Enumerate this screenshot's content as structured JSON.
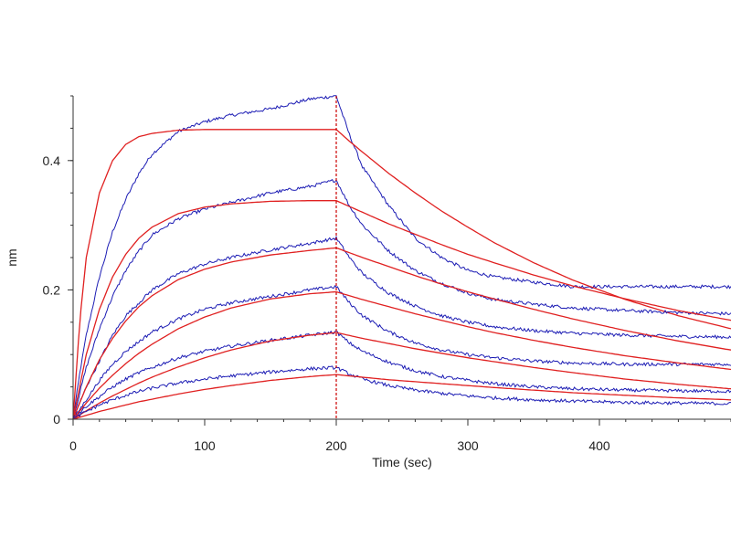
{
  "chart_data": {
    "type": "line",
    "title": "",
    "xlabel": "Time (sec)",
    "ylabel": "nm",
    "xlim": [
      0,
      500
    ],
    "ylim": [
      0,
      0.5
    ],
    "xticks": [
      0,
      100,
      200,
      300,
      400
    ],
    "xtick_labels": [
      "0",
      "100",
      "200",
      "300",
      "400"
    ],
    "yticks": [
      0,
      0.2,
      0.4
    ],
    "ytick_labels": [
      "0",
      "0.2",
      "0.4"
    ],
    "grid": false,
    "legend": "none",
    "vertical_marker": {
      "x": 200,
      "color": "#cc0000",
      "style": "dashed"
    },
    "colors": {
      "measured": "#1c1cb4",
      "fit": "#e02020",
      "axis": "#333333"
    },
    "series": [
      {
        "kind": "measured",
        "x": [
          0,
          5,
          10,
          20,
          30,
          40,
          50,
          60,
          80,
          100,
          120,
          150,
          180,
          200,
          210,
          220,
          240,
          260,
          280,
          300,
          320,
          350,
          380,
          420,
          460,
          500
        ],
        "values": [
          0.0,
          0.07,
          0.13,
          0.22,
          0.29,
          0.34,
          0.38,
          0.41,
          0.445,
          0.46,
          0.47,
          0.48,
          0.495,
          0.5,
          0.44,
          0.39,
          0.33,
          0.28,
          0.25,
          0.23,
          0.22,
          0.212,
          0.205,
          0.205,
          0.205,
          0.205
        ]
      },
      {
        "kind": "fit",
        "x": [
          0,
          5,
          10,
          20,
          30,
          40,
          50,
          60,
          80,
          100,
          120,
          150,
          180,
          200,
          210,
          220,
          240,
          260,
          280,
          300,
          320,
          350,
          380,
          420,
          460,
          500
        ],
        "values": [
          0.0,
          0.15,
          0.25,
          0.35,
          0.4,
          0.425,
          0.437,
          0.442,
          0.447,
          0.448,
          0.448,
          0.448,
          0.448,
          0.448,
          0.43,
          0.413,
          0.38,
          0.35,
          0.322,
          0.297,
          0.273,
          0.242,
          0.215,
          0.185,
          0.16,
          0.14
        ]
      },
      {
        "kind": "measured",
        "x": [
          0,
          10,
          20,
          30,
          40,
          50,
          60,
          80,
          100,
          120,
          150,
          180,
          200,
          210,
          220,
          240,
          260,
          280,
          300,
          320,
          350,
          380,
          420,
          460,
          500
        ],
        "values": [
          0.0,
          0.08,
          0.14,
          0.19,
          0.23,
          0.26,
          0.285,
          0.31,
          0.325,
          0.335,
          0.35,
          0.36,
          0.37,
          0.33,
          0.3,
          0.26,
          0.23,
          0.21,
          0.195,
          0.185,
          0.178,
          0.172,
          0.168,
          0.165,
          0.163
        ]
      },
      {
        "kind": "fit",
        "x": [
          0,
          10,
          20,
          30,
          40,
          50,
          60,
          80,
          100,
          120,
          150,
          180,
          200,
          220,
          240,
          260,
          280,
          300,
          320,
          350,
          380,
          420,
          460,
          500
        ],
        "values": [
          0.0,
          0.1,
          0.17,
          0.22,
          0.255,
          0.28,
          0.297,
          0.318,
          0.328,
          0.333,
          0.337,
          0.338,
          0.338,
          0.32,
          0.302,
          0.286,
          0.27,
          0.255,
          0.242,
          0.223,
          0.206,
          0.186,
          0.168,
          0.153
        ]
      },
      {
        "kind": "measured",
        "x": [
          0,
          10,
          20,
          30,
          40,
          50,
          60,
          80,
          100,
          120,
          150,
          180,
          200,
          210,
          220,
          240,
          260,
          280,
          300,
          320,
          350,
          380,
          420,
          460,
          500
        ],
        "values": [
          0.0,
          0.05,
          0.09,
          0.13,
          0.16,
          0.18,
          0.2,
          0.225,
          0.24,
          0.25,
          0.262,
          0.272,
          0.28,
          0.25,
          0.225,
          0.195,
          0.175,
          0.16,
          0.15,
          0.143,
          0.137,
          0.133,
          0.13,
          0.128,
          0.127
        ]
      },
      {
        "kind": "fit",
        "x": [
          0,
          10,
          20,
          30,
          40,
          50,
          60,
          80,
          100,
          120,
          150,
          180,
          200,
          220,
          240,
          260,
          280,
          300,
          320,
          350,
          380,
          420,
          460,
          500
        ],
        "values": [
          0.0,
          0.05,
          0.092,
          0.125,
          0.152,
          0.174,
          0.191,
          0.216,
          0.232,
          0.243,
          0.254,
          0.261,
          0.265,
          0.25,
          0.236,
          0.222,
          0.209,
          0.197,
          0.186,
          0.17,
          0.155,
          0.137,
          0.121,
          0.107
        ]
      },
      {
        "kind": "measured",
        "x": [
          0,
          10,
          20,
          30,
          40,
          50,
          60,
          80,
          100,
          120,
          150,
          180,
          200,
          210,
          220,
          240,
          260,
          280,
          300,
          320,
          350,
          380,
          420,
          460,
          500
        ],
        "values": [
          0.0,
          0.03,
          0.06,
          0.085,
          0.105,
          0.12,
          0.135,
          0.155,
          0.17,
          0.18,
          0.19,
          0.2,
          0.205,
          0.18,
          0.16,
          0.135,
          0.118,
          0.107,
          0.1,
          0.095,
          0.09,
          0.087,
          0.085,
          0.085,
          0.085
        ]
      },
      {
        "kind": "fit",
        "x": [
          0,
          10,
          20,
          30,
          40,
          50,
          60,
          80,
          100,
          120,
          150,
          180,
          200,
          220,
          240,
          260,
          280,
          300,
          320,
          350,
          380,
          420,
          460,
          500
        ],
        "values": [
          0.0,
          0.025,
          0.048,
          0.068,
          0.086,
          0.102,
          0.116,
          0.14,
          0.158,
          0.172,
          0.186,
          0.194,
          0.197,
          0.185,
          0.174,
          0.163,
          0.153,
          0.143,
          0.134,
          0.122,
          0.111,
          0.098,
          0.087,
          0.077
        ]
      },
      {
        "kind": "measured",
        "x": [
          0,
          10,
          20,
          30,
          40,
          50,
          60,
          80,
          100,
          120,
          150,
          180,
          200,
          210,
          220,
          240,
          260,
          280,
          300,
          320,
          350,
          380,
          420,
          460,
          500
        ],
        "values": [
          0.0,
          0.02,
          0.035,
          0.05,
          0.062,
          0.072,
          0.08,
          0.095,
          0.105,
          0.113,
          0.122,
          0.13,
          0.135,
          0.118,
          0.105,
          0.088,
          0.075,
          0.066,
          0.06,
          0.055,
          0.05,
          0.047,
          0.045,
          0.044,
          0.043
        ]
      },
      {
        "kind": "fit",
        "x": [
          0,
          10,
          20,
          30,
          40,
          50,
          60,
          80,
          100,
          120,
          150,
          180,
          200,
          220,
          240,
          260,
          280,
          300,
          320,
          350,
          380,
          420,
          460,
          500
        ],
        "values": [
          0.0,
          0.013,
          0.025,
          0.036,
          0.046,
          0.056,
          0.065,
          0.081,
          0.095,
          0.107,
          0.121,
          0.13,
          0.134,
          0.125,
          0.117,
          0.109,
          0.102,
          0.095,
          0.089,
          0.08,
          0.072,
          0.062,
          0.054,
          0.047
        ]
      },
      {
        "kind": "measured",
        "x": [
          0,
          10,
          20,
          30,
          40,
          50,
          60,
          80,
          100,
          120,
          150,
          180,
          200,
          210,
          220,
          240,
          260,
          280,
          300,
          320,
          350,
          380,
          420,
          460,
          500
        ],
        "values": [
          0.0,
          0.012,
          0.022,
          0.03,
          0.037,
          0.043,
          0.048,
          0.056,
          0.062,
          0.067,
          0.073,
          0.078,
          0.08,
          0.07,
          0.062,
          0.052,
          0.045,
          0.04,
          0.036,
          0.033,
          0.03,
          0.028,
          0.026,
          0.025,
          0.024
        ]
      },
      {
        "kind": "fit",
        "x": [
          0,
          10,
          20,
          30,
          40,
          50,
          60,
          80,
          100,
          120,
          150,
          180,
          200,
          220,
          240,
          260,
          280,
          300,
          320,
          350,
          380,
          420,
          460,
          500
        ],
        "values": [
          0.0,
          0.006,
          0.012,
          0.017,
          0.022,
          0.027,
          0.031,
          0.039,
          0.046,
          0.052,
          0.06,
          0.066,
          0.069,
          0.065,
          0.061,
          0.058,
          0.055,
          0.052,
          0.049,
          0.045,
          0.041,
          0.037,
          0.033,
          0.03
        ]
      }
    ]
  }
}
